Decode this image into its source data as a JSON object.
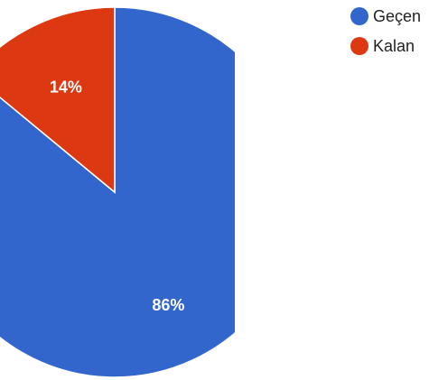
{
  "chart_data": {
    "type": "pie",
    "series": [
      {
        "name": "Geçen",
        "value": 86,
        "label": "86%",
        "color": "#3366cc"
      },
      {
        "name": "Kalan",
        "value": 14,
        "label": "14%",
        "color": "#dc3912"
      }
    ],
    "legend": {
      "position": "top-right",
      "items": [
        "Geçen",
        "Kalan"
      ]
    },
    "start_angle": "12 o'clock",
    "direction": "clockwise"
  }
}
